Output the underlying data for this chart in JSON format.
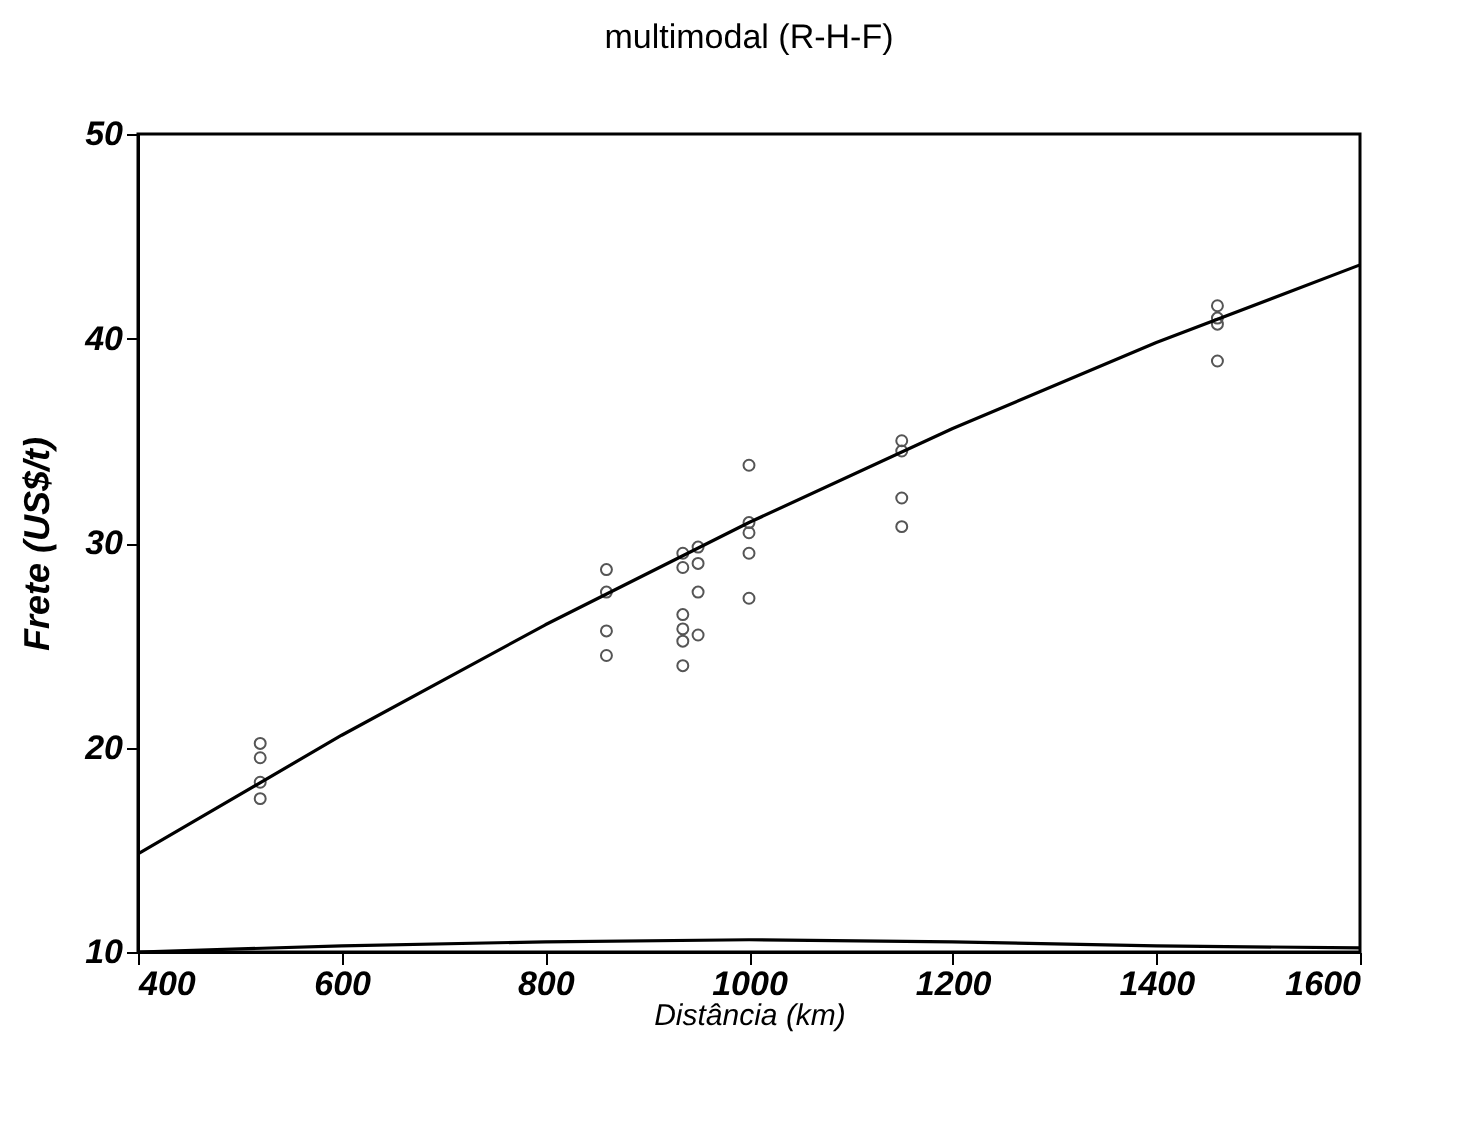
{
  "chart_data": {
    "type": "scatter",
    "title": "multimodal (R-H-F)",
    "xlabel": "Distância (km)",
    "ylabel": "Frete (US$/t)",
    "xlim": [
      400,
      1600
    ],
    "ylim": [
      10,
      50
    ],
    "xticks": [
      400,
      600,
      800,
      1000,
      1200,
      1400,
      1600
    ],
    "yticks": [
      10,
      20,
      30,
      40,
      50
    ],
    "grid": false,
    "series": [
      {
        "marker": "circle",
        "color": "#555555",
        "x": [
          520,
          520,
          520,
          520,
          860,
          860,
          860,
          860,
          935,
          935,
          935,
          935,
          935,
          935,
          950,
          950,
          950,
          950,
          1000,
          1000,
          1000,
          1000,
          1000,
          1150,
          1150,
          1150,
          1150,
          1460,
          1460,
          1460,
          1460
        ],
        "values": [
          20.2,
          19.5,
          18.3,
          17.5,
          28.7,
          27.6,
          25.7,
          24.5,
          29.5,
          28.8,
          26.5,
          25.8,
          25.2,
          24.0,
          29.0,
          27.6,
          25.5,
          29.8,
          33.8,
          31.0,
          30.5,
          29.5,
          27.3,
          35.0,
          34.5,
          32.2,
          30.8,
          41.6,
          41.0,
          40.7,
          38.9
        ]
      },
      {
        "type": "line",
        "color": "#000000",
        "line_style": "solid",
        "x": [
          400,
          600,
          800,
          1000,
          1200,
          1400,
          1600
        ],
        "values": [
          14.8,
          20.6,
          26.0,
          31.0,
          35.6,
          39.8,
          43.6
        ]
      },
      {
        "type": "line",
        "color": "#000000",
        "line_style": "solid",
        "x": [
          400,
          600,
          800,
          1000,
          1200,
          1400,
          1600
        ],
        "values": [
          10.0,
          10.3,
          10.5,
          10.6,
          10.5,
          10.3,
          10.2
        ]
      }
    ]
  }
}
